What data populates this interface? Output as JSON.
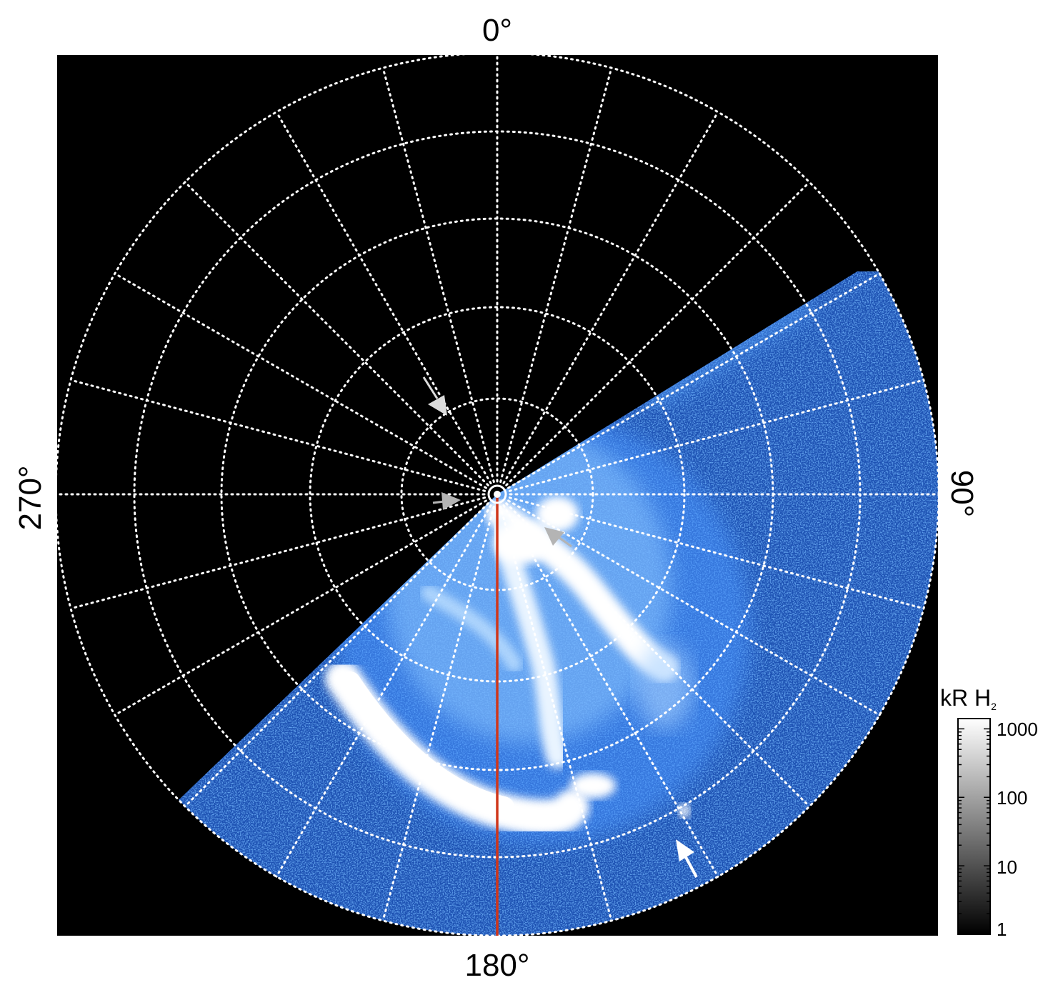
{
  "figure": {
    "labels": {
      "top": "0°",
      "right": "90°",
      "bottom": "180°",
      "left": "270°"
    },
    "colorbar": {
      "unit": "kR H",
      "unit_subscript": "2",
      "ticks": [
        "1000",
        "100",
        "10",
        "1"
      ]
    },
    "colors": {
      "background": "#000000",
      "aurora_dim": "#1e5fd6",
      "aurora_mid": "#6fb2ff",
      "aurora_bright": "#ffffff",
      "grid": "#ffffff",
      "meridian": "#d0361a",
      "arrow_gray": "#b4b4b4",
      "arrow_white": "#ffffff"
    }
  }
}
